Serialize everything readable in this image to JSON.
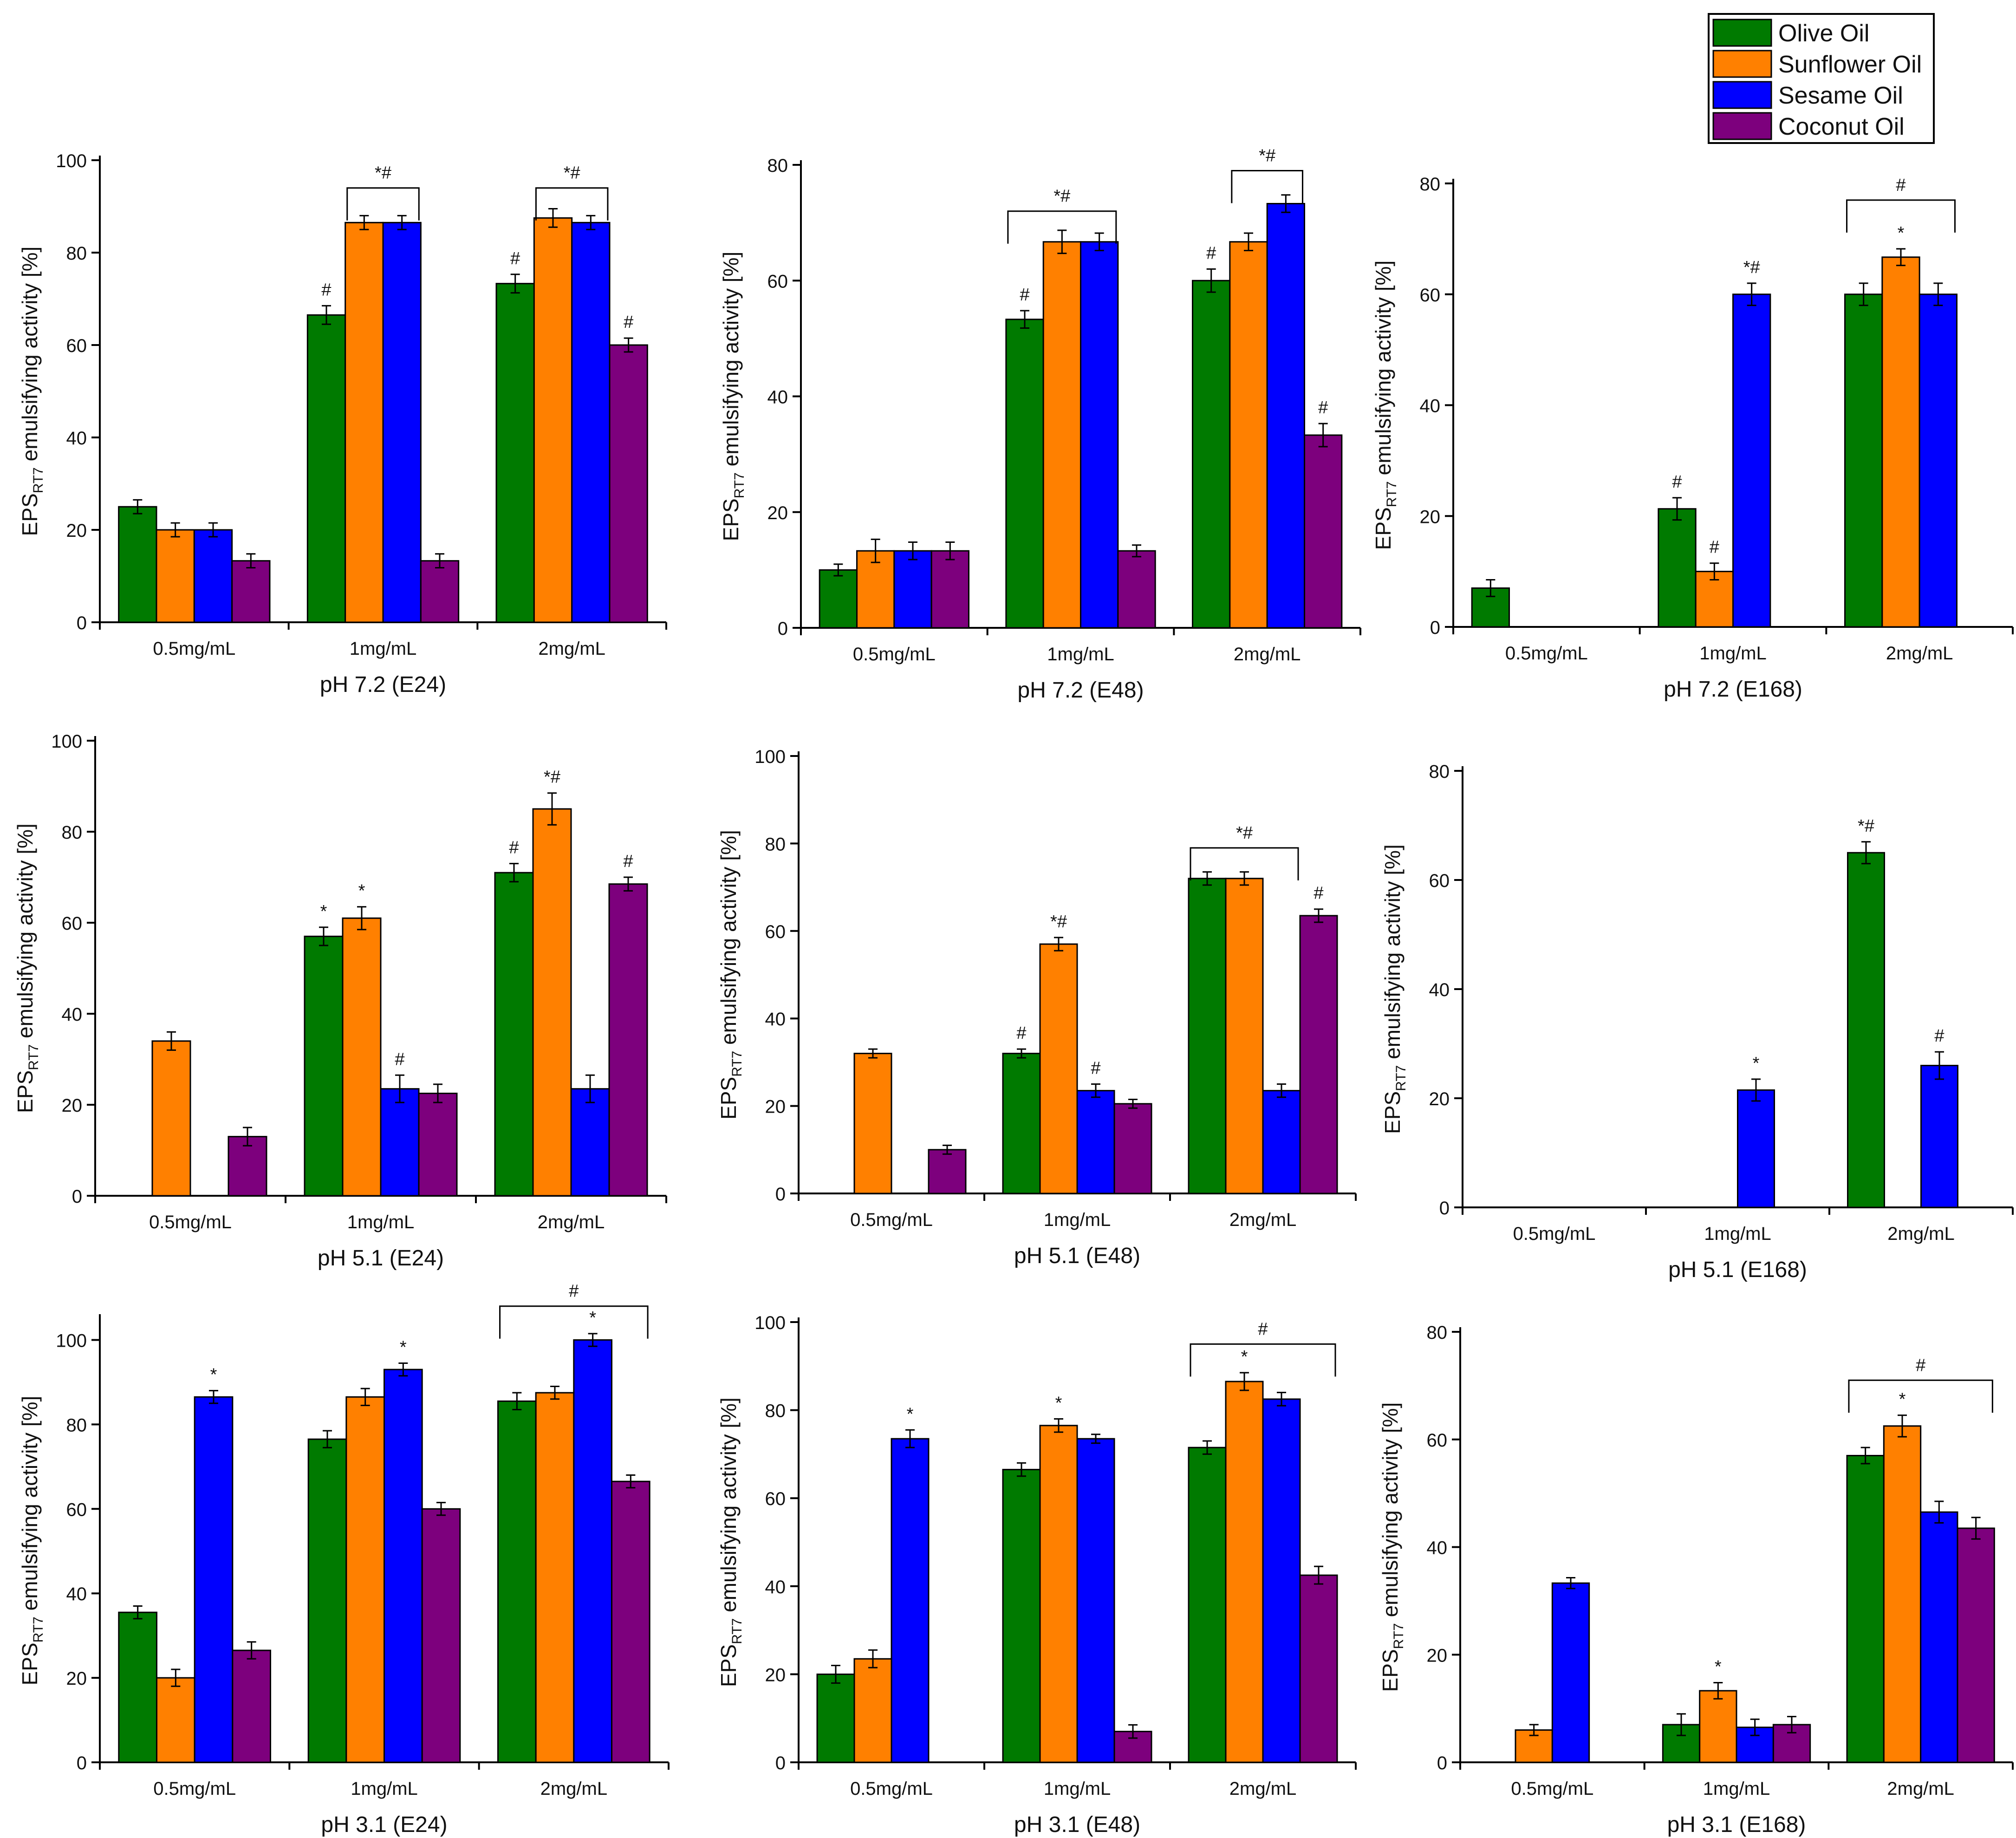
{
  "figure": {
    "legend": [
      {
        "label": "Olive Oil",
        "color": "#007a00"
      },
      {
        "label": "Sunflower Oil",
        "color": "#ff8000"
      },
      {
        "label": "Sesame Oil",
        "color": "#0000ff"
      },
      {
        "label": "Coconut Oil",
        "color": "#7d007d"
      }
    ],
    "ylabel_main": "EPS",
    "ylabel_sub": "RT7",
    "ylabel_rest": " emulsifying activity [%]"
  },
  "chart_data": [
    {
      "type": "bar",
      "title": "pH 7.2 (E24)",
      "categories": [
        "0.5mg/mL",
        "1mg/mL",
        "2mg/mL"
      ],
      "ylim": [
        0,
        100
      ],
      "yticks": [
        0,
        20,
        40,
        60,
        80,
        100
      ],
      "series": [
        {
          "name": "Olive Oil",
          "values": [
            25,
            66.5,
            73.3
          ],
          "errors": [
            1.5,
            2,
            2
          ],
          "marks": [
            "",
            "#",
            "#"
          ]
        },
        {
          "name": "Sunflower Oil",
          "values": [
            20,
            86.5,
            87.5
          ],
          "errors": [
            1.5,
            1.5,
            2
          ],
          "marks": [
            "",
            "",
            ""
          ]
        },
        {
          "name": "Sesame Oil",
          "values": [
            20,
            86.5,
            86.5
          ],
          "errors": [
            1.5,
            1.5,
            1.5
          ],
          "marks": [
            "",
            "",
            ""
          ]
        },
        {
          "name": "Coconut Oil",
          "values": [
            13.3,
            13.3,
            60
          ],
          "errors": [
            1.5,
            1.5,
            1.5
          ],
          "marks": [
            "",
            "",
            "#"
          ]
        }
      ],
      "brackets": [
        {
          "category": 1,
          "from": 1,
          "to": 2,
          "y": 94,
          "label": "*#"
        },
        {
          "category": 2,
          "from": 1,
          "to": 2,
          "y": 94,
          "label": "*#"
        }
      ]
    },
    {
      "type": "bar",
      "title": "pH 7.2 (E48)",
      "categories": [
        "0.5mg/mL",
        "1mg/mL",
        "2mg/mL"
      ],
      "ylim": [
        0,
        80
      ],
      "yticks": [
        0,
        20,
        40,
        60,
        80
      ],
      "series": [
        {
          "name": "Olive Oil",
          "values": [
            10,
            53.3,
            60
          ],
          "errors": [
            1,
            1.5,
            2
          ],
          "marks": [
            "",
            "#",
            "#"
          ]
        },
        {
          "name": "Sunflower Oil",
          "values": [
            13.3,
            66.7,
            66.7
          ],
          "errors": [
            2,
            2,
            1.5
          ],
          "marks": [
            "",
            "",
            ""
          ]
        },
        {
          "name": "Sesame Oil",
          "values": [
            13.3,
            66.7,
            73.3
          ],
          "errors": [
            1.5,
            1.5,
            1.5
          ],
          "marks": [
            "",
            "",
            ""
          ]
        },
        {
          "name": "Coconut Oil",
          "values": [
            13.3,
            13.3,
            33.3
          ],
          "errors": [
            1.5,
            1,
            2
          ],
          "marks": [
            "",
            "",
            "#"
          ]
        }
      ],
      "brackets": [
        {
          "category": 1,
          "from": 0,
          "to": 2,
          "y": 72,
          "label": "*#"
        },
        {
          "category": 2,
          "from": 1,
          "to": 2,
          "y": 79,
          "label": "*#"
        }
      ]
    },
    {
      "type": "bar",
      "title": "pH 7.2 (E168)",
      "categories": [
        "0.5mg/mL",
        "1mg/mL",
        "2mg/mL"
      ],
      "ylim": [
        0,
        80
      ],
      "yticks": [
        0,
        20,
        40,
        60,
        80
      ],
      "series": [
        {
          "name": "Olive Oil",
          "values": [
            7,
            21.3,
            60
          ],
          "errors": [
            1.5,
            2,
            2
          ],
          "marks": [
            "",
            "#",
            ""
          ]
        },
        {
          "name": "Sunflower Oil",
          "values": [
            0,
            10,
            66.7
          ],
          "errors": [
            0,
            1.5,
            1.5
          ],
          "marks": [
            "",
            "#",
            "*"
          ]
        },
        {
          "name": "Sesame Oil",
          "values": [
            0,
            60,
            60
          ],
          "errors": [
            0,
            2,
            2
          ],
          "marks": [
            "",
            "*#",
            ""
          ]
        },
        {
          "name": "Coconut Oil",
          "values": [
            0,
            0,
            0
          ],
          "errors": [
            0,
            0,
            0
          ],
          "marks": [
            "",
            "",
            ""
          ]
        }
      ],
      "brackets": [
        {
          "category": 2,
          "from": 0,
          "to": 2,
          "y": 77,
          "label": "#"
        }
      ]
    },
    {
      "type": "bar",
      "title": "pH 5.1 (E24)",
      "categories": [
        "0.5mg/mL",
        "1mg/mL",
        "2mg/mL"
      ],
      "ylim": [
        0,
        100
      ],
      "yticks": [
        0,
        20,
        40,
        60,
        80,
        100
      ],
      "series": [
        {
          "name": "Olive Oil",
          "values": [
            0,
            57,
            71
          ],
          "errors": [
            0,
            2,
            2
          ],
          "marks": [
            "",
            "*",
            "#"
          ]
        },
        {
          "name": "Sunflower Oil",
          "values": [
            34,
            61,
            85
          ],
          "errors": [
            2,
            2.5,
            3.5
          ],
          "marks": [
            "",
            "*",
            "*#"
          ]
        },
        {
          "name": "Sesame Oil",
          "values": [
            0,
            23.5,
            23.5
          ],
          "errors": [
            0,
            3,
            3
          ],
          "marks": [
            "",
            "#",
            ""
          ]
        },
        {
          "name": "Coconut Oil",
          "values": [
            13,
            22.5,
            68.5
          ],
          "errors": [
            2,
            2,
            1.5
          ],
          "marks": [
            "",
            "",
            "#"
          ]
        }
      ],
      "brackets": []
    },
    {
      "type": "bar",
      "title": "pH 5.1 (E48)",
      "categories": [
        "0.5mg/mL",
        "1mg/mL",
        "2mg/mL"
      ],
      "ylim": [
        0,
        100
      ],
      "yticks": [
        0,
        20,
        40,
        60,
        80,
        100
      ],
      "series": [
        {
          "name": "Olive Oil",
          "values": [
            0,
            32,
            72
          ],
          "errors": [
            0,
            1,
            1.5
          ],
          "marks": [
            "",
            "#",
            ""
          ]
        },
        {
          "name": "Sunflower Oil",
          "values": [
            32,
            57,
            72
          ],
          "errors": [
            1,
            1.5,
            1.5
          ],
          "marks": [
            "",
            "*#",
            ""
          ]
        },
        {
          "name": "Sesame Oil",
          "values": [
            0,
            23.5,
            23.5
          ],
          "errors": [
            0,
            1.5,
            1.5
          ],
          "marks": [
            "",
            "#",
            ""
          ]
        },
        {
          "name": "Coconut Oil",
          "values": [
            10,
            20.5,
            63.5
          ],
          "errors": [
            1,
            1,
            1.5
          ],
          "marks": [
            "",
            "",
            "#"
          ]
        }
      ],
      "brackets": [
        {
          "category": 2,
          "from": 0,
          "to": 2,
          "y": 79,
          "label": "*#"
        }
      ]
    },
    {
      "type": "bar",
      "title": "pH 5.1 (E168)",
      "categories": [
        "0.5mg/mL",
        "1mg/mL",
        "2mg/mL"
      ],
      "ylim": [
        0,
        80
      ],
      "yticks": [
        0,
        20,
        40,
        60,
        80
      ],
      "series": [
        {
          "name": "Olive Oil",
          "values": [
            0,
            0,
            65
          ],
          "errors": [
            0,
            0,
            2
          ],
          "marks": [
            "",
            "",
            "*#"
          ]
        },
        {
          "name": "Sunflower Oil",
          "values": [
            0,
            0,
            0
          ],
          "errors": [
            0,
            0,
            0
          ],
          "marks": [
            "",
            "",
            ""
          ]
        },
        {
          "name": "Sesame Oil",
          "values": [
            0,
            21.5,
            26
          ],
          "errors": [
            0,
            2,
            2.5
          ],
          "marks": [
            "",
            "*",
            "#"
          ]
        },
        {
          "name": "Coconut Oil",
          "values": [
            0,
            0,
            0
          ],
          "errors": [
            0,
            0,
            0
          ],
          "marks": [
            "",
            "",
            ""
          ]
        }
      ],
      "brackets": []
    },
    {
      "type": "bar",
      "title": "pH 3.1 (E24)",
      "categories": [
        "0.5mg/mL",
        "1mg/mL",
        "2mg/mL"
      ],
      "ylim": [
        0,
        105
      ],
      "yticks": [
        0,
        20,
        40,
        60,
        80,
        100
      ],
      "series": [
        {
          "name": "Olive Oil",
          "values": [
            35.5,
            76.5,
            85.5
          ],
          "errors": [
            1.5,
            2,
            2
          ],
          "marks": [
            "",
            "",
            ""
          ]
        },
        {
          "name": "Sunflower Oil",
          "values": [
            20,
            86.5,
            87.5
          ],
          "errors": [
            2,
            2,
            1.5
          ],
          "marks": [
            "",
            "",
            ""
          ]
        },
        {
          "name": "Sesame Oil",
          "values": [
            86.5,
            93,
            100
          ],
          "errors": [
            1.5,
            1.5,
            1.5
          ],
          "marks": [
            "*",
            "*",
            "*"
          ]
        },
        {
          "name": "Coconut Oil",
          "values": [
            26.5,
            60,
            66.5
          ],
          "errors": [
            2,
            1.5,
            1.5
          ],
          "marks": [
            "",
            "",
            ""
          ]
        }
      ],
      "brackets": [
        {
          "category": 2,
          "from": 0,
          "to": 3,
          "y": 108,
          "label": "#"
        }
      ]
    },
    {
      "type": "bar",
      "title": "pH 3.1 (E48)",
      "categories": [
        "0.5mg/mL",
        "1mg/mL",
        "2mg/mL"
      ],
      "ylim": [
        0,
        100
      ],
      "yticks": [
        0,
        20,
        40,
        60,
        80,
        100
      ],
      "series": [
        {
          "name": "Olive Oil",
          "values": [
            20,
            66.5,
            71.5
          ],
          "errors": [
            2,
            1.5,
            1.5
          ],
          "marks": [
            "",
            "",
            ""
          ]
        },
        {
          "name": "Sunflower Oil",
          "values": [
            23.5,
            76.5,
            86.5
          ],
          "errors": [
            2,
            1.5,
            2
          ],
          "marks": [
            "",
            "*",
            "*"
          ]
        },
        {
          "name": "Sesame Oil",
          "values": [
            73.5,
            73.5,
            82.5
          ],
          "errors": [
            2,
            1,
            1.5
          ],
          "marks": [
            "*",
            "",
            ""
          ]
        },
        {
          "name": "Coconut Oil",
          "values": [
            0,
            7,
            42.5
          ],
          "errors": [
            0,
            1.5,
            2
          ],
          "marks": [
            "",
            "",
            ""
          ]
        }
      ],
      "brackets": [
        {
          "category": 2,
          "from": 0,
          "to": 3,
          "y": 95,
          "label": "#"
        }
      ]
    },
    {
      "type": "bar",
      "title": "pH 3.1 (E168)",
      "categories": [
        "0.5mg/mL",
        "1mg/mL",
        "2mg/mL"
      ],
      "ylim": [
        0,
        80
      ],
      "yticks": [
        0,
        20,
        40,
        60,
        80
      ],
      "series": [
        {
          "name": "Olive Oil",
          "values": [
            0,
            7,
            57
          ],
          "errors": [
            0,
            2,
            1.5
          ],
          "marks": [
            "",
            "",
            ""
          ]
        },
        {
          "name": "Sunflower Oil",
          "values": [
            6,
            13.3,
            62.5
          ],
          "errors": [
            1,
            1.5,
            2
          ],
          "marks": [
            "",
            "*",
            "*"
          ]
        },
        {
          "name": "Sesame Oil",
          "values": [
            33.3,
            6.5,
            46.5
          ],
          "errors": [
            1,
            1.5,
            2
          ],
          "marks": [
            "",
            "",
            ""
          ]
        },
        {
          "name": "Coconut Oil",
          "values": [
            0,
            7,
            43.5
          ],
          "errors": [
            0,
            1.5,
            2
          ],
          "marks": [
            "",
            "",
            ""
          ]
        }
      ],
      "brackets": [
        {
          "category": 2,
          "from": 0,
          "to": 3,
          "y": 71,
          "label": "#"
        }
      ]
    }
  ]
}
